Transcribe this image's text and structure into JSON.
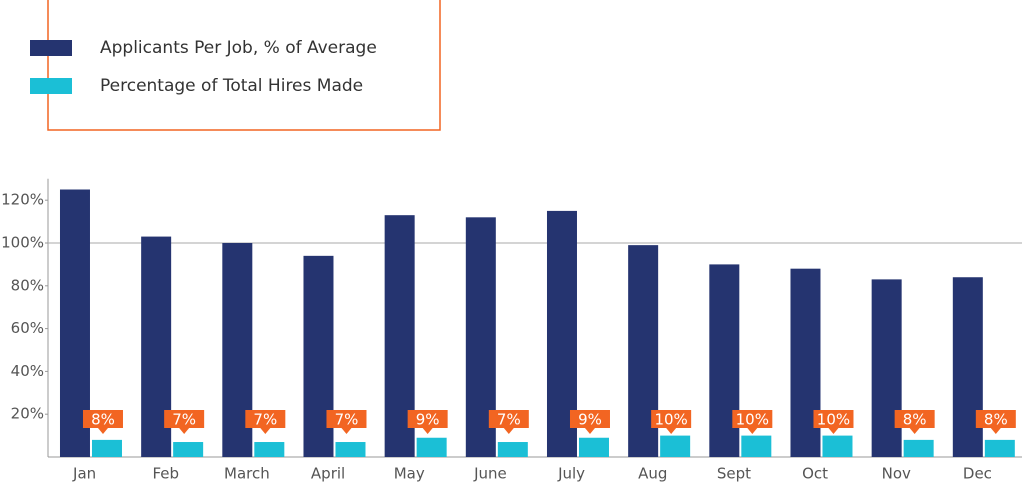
{
  "chart_data": {
    "type": "bar",
    "categories": [
      "Jan",
      "Feb",
      "March",
      "April",
      "May",
      "June",
      "July",
      "Aug",
      "Sept",
      "Oct",
      "Nov",
      "Dec"
    ],
    "series": [
      {
        "name": "Applicants Per Job, % of Average",
        "color": "#253470",
        "values": [
          125,
          103,
          100,
          94,
          113,
          112,
          115,
          99,
          90,
          88,
          83,
          84
        ]
      },
      {
        "name": "Percentage of Total Hires Made",
        "color": "#1bbfd6",
        "values": [
          8,
          7,
          7,
          7,
          9,
          7,
          9,
          10,
          10,
          10,
          8,
          8
        ],
        "value_labels": [
          "8%",
          "7%",
          "7%",
          "7%",
          "9%",
          "7%",
          "9%",
          "10%",
          "10%",
          "10%",
          "8%",
          "8%"
        ],
        "label_color": "#f26522"
      }
    ],
    "ylim": [
      0,
      130
    ],
    "yticks": [
      {
        "value": 20,
        "label": "20%"
      },
      {
        "value": 40,
        "label": "40%"
      },
      {
        "value": 60,
        "label": "60%"
      },
      {
        "value": 80,
        "label": "80%"
      },
      {
        "value": 100,
        "label": "100%"
      },
      {
        "value": 120,
        "label": "120%"
      }
    ],
    "reference_line": 100
  }
}
